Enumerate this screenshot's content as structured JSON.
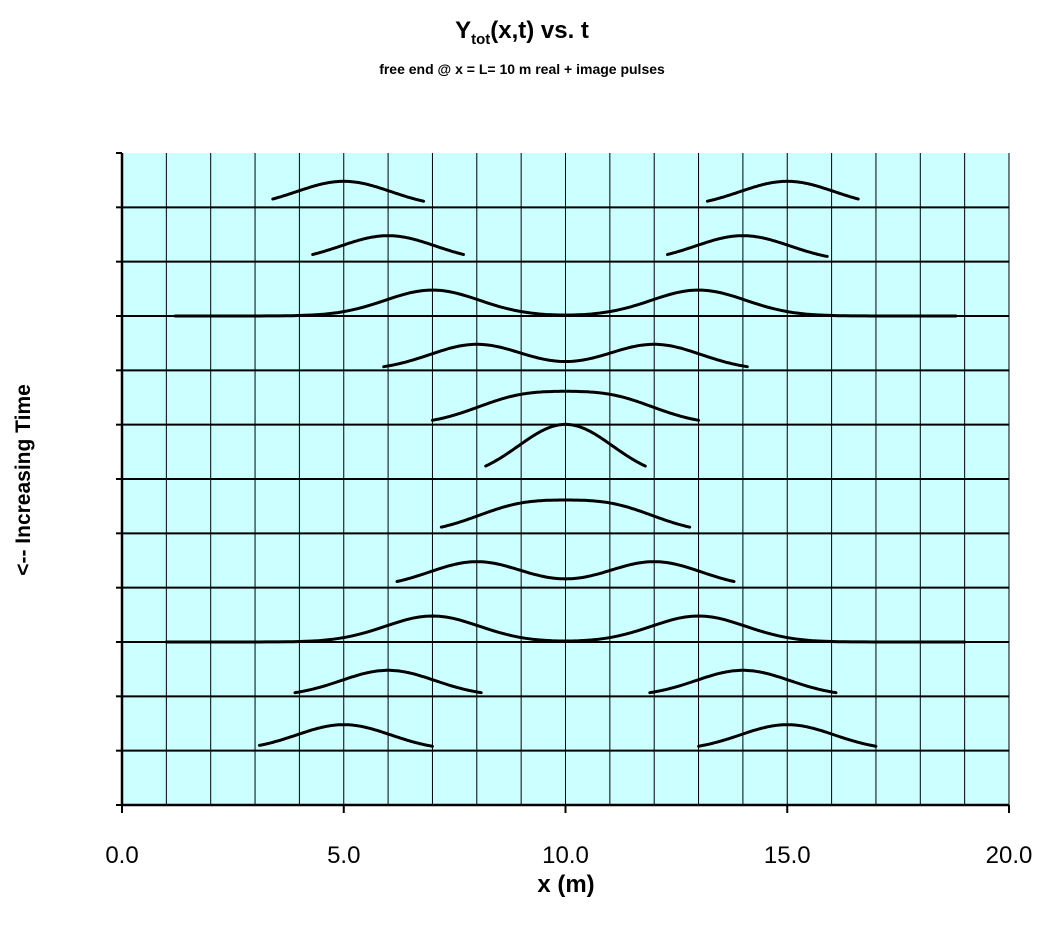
{
  "chart_data": {
    "type": "line",
    "title": {
      "main": "Y",
      "subscript": "tot",
      "rest": "(x,t) vs. t"
    },
    "subtitle": "free end @ x = L= 10 m  real + image pulses",
    "xlabel": "x (m)",
    "ylabel": "<-- Increasing Time",
    "xlim": [
      0,
      20
    ],
    "x_ticks": [
      "0.0",
      "5.0",
      "10.0",
      "15.0",
      "20.0"
    ],
    "x_minor_step": 1,
    "n_rows": 12,
    "grid": true,
    "background_color": "#ccffff",
    "line_color": "#000000",
    "pulse_width": 1.5,
    "series": [
      {
        "row": 1,
        "start": 3.4,
        "end": 16.6,
        "peaks": [
          5,
          15
        ],
        "trim_left": 6.8,
        "trim_right": 13.2
      },
      {
        "row": 2,
        "start": 4.3,
        "end": 15.9,
        "peaks": [
          6,
          14
        ],
        "trim_left": 7.7,
        "trim_right": 12.3
      },
      {
        "row": 3,
        "start": 1.2,
        "end": 18.8,
        "peaks": [
          7,
          13
        ]
      },
      {
        "row": 4,
        "start": 5.9,
        "end": 14.1,
        "peaks": [
          8,
          12
        ]
      },
      {
        "row": 5,
        "start": 7.0,
        "end": 13.0,
        "peaks": [
          9,
          11
        ]
      },
      {
        "row": 6,
        "start": 8.2,
        "end": 11.8,
        "peaks": [
          10,
          10
        ]
      },
      {
        "row": 7,
        "start": 7.2,
        "end": 12.8,
        "peaks": [
          9,
          11
        ]
      },
      {
        "row": 8,
        "start": 6.2,
        "end": 13.8,
        "peaks": [
          8,
          12
        ]
      },
      {
        "row": 9,
        "start": 1.0,
        "end": 19.0,
        "peaks": [
          7,
          13
        ]
      },
      {
        "row": 10,
        "start": 3.9,
        "end": 16.1,
        "peaks": [
          6,
          14
        ],
        "trim_left": 8.1,
        "trim_right": 11.9
      },
      {
        "row": 11,
        "start": 3.1,
        "end": 17.0,
        "peaks": [
          5,
          15
        ],
        "trim_left": 7.0,
        "trim_right": 13.0
      }
    ]
  }
}
